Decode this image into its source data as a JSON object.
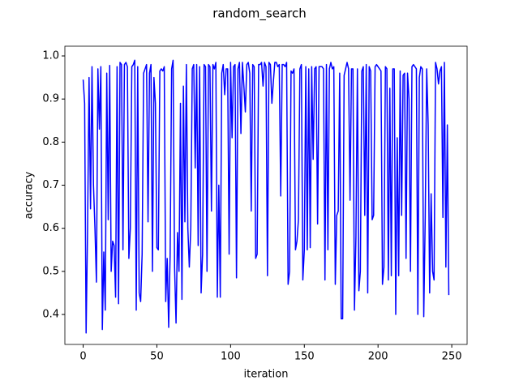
{
  "chart_data": {
    "type": "line",
    "title": "random_search",
    "x_label": "iteration",
    "y_label": "accuracy",
    "x": [
      0,
      1,
      2,
      3,
      4,
      5,
      6,
      7,
      8,
      9,
      10,
      11,
      12,
      13,
      14,
      15,
      16,
      17,
      18,
      19,
      20,
      21,
      22,
      23,
      24,
      25,
      26,
      27,
      28,
      29,
      30,
      31,
      32,
      33,
      34,
      35,
      36,
      37,
      38,
      39,
      40,
      41,
      42,
      43,
      44,
      45,
      46,
      47,
      48,
      49,
      50,
      51,
      52,
      53,
      54,
      55,
      56,
      57,
      58,
      59,
      60,
      61,
      62,
      63,
      64,
      65,
      66,
      67,
      68,
      69,
      70,
      71,
      72,
      73,
      74,
      75,
      76,
      77,
      78,
      79,
      80,
      81,
      82,
      83,
      84,
      85,
      86,
      87,
      88,
      89,
      90,
      91,
      92,
      93,
      94,
      95,
      96,
      97,
      98,
      99,
      100,
      101,
      102,
      103,
      104,
      105,
      106,
      107,
      108,
      109,
      110,
      111,
      112,
      113,
      114,
      115,
      116,
      117,
      118,
      119,
      120,
      121,
      122,
      123,
      124,
      125,
      126,
      127,
      128,
      129,
      130,
      131,
      132,
      133,
      134,
      135,
      136,
      137,
      138,
      139,
      140,
      141,
      142,
      143,
      144,
      145,
      146,
      147,
      148,
      149,
      150,
      151,
      152,
      153,
      154,
      155,
      156,
      157,
      158,
      159,
      160,
      161,
      162,
      163,
      164,
      165,
      166,
      167,
      168,
      169,
      170,
      171,
      172,
      173,
      174,
      175,
      176,
      177,
      178,
      179,
      180,
      181,
      182,
      183,
      184,
      185,
      186,
      187,
      188,
      189,
      190,
      191,
      192,
      193,
      194,
      195,
      196,
      197,
      198,
      199,
      200,
      201,
      202,
      203,
      204,
      205,
      206,
      207,
      208,
      209,
      210,
      211,
      212,
      213,
      214,
      215,
      216,
      217,
      218,
      219,
      220,
      221,
      222,
      223,
      224,
      225,
      226,
      227,
      228,
      229,
      230,
      231,
      232,
      233,
      234,
      235,
      236,
      237,
      238,
      239,
      240,
      241,
      242,
      243,
      244,
      245,
      246,
      247,
      248
    ],
    "series": [
      {
        "name": "accuracy",
        "color": "#0000ff",
        "values": [
          0.945,
          0.89,
          0.357,
          0.6,
          0.95,
          0.645,
          0.975,
          0.7,
          0.6,
          0.475,
          0.97,
          0.83,
          0.975,
          0.365,
          0.545,
          0.41,
          0.96,
          0.62,
          0.978,
          0.5,
          0.57,
          0.56,
          0.44,
          0.975,
          0.425,
          0.985,
          0.98,
          0.55,
          0.98,
          0.985,
          0.975,
          0.53,
          0.6,
          0.975,
          0.98,
          0.99,
          0.41,
          0.975,
          0.45,
          0.43,
          0.54,
          0.96,
          0.97,
          0.98,
          0.615,
          0.96,
          0.98,
          0.5,
          0.95,
          0.89,
          0.555,
          0.55,
          0.965,
          0.97,
          0.965,
          0.975,
          0.43,
          0.53,
          0.37,
          0.54,
          0.97,
          0.99,
          0.51,
          0.38,
          0.59,
          0.5,
          0.89,
          0.435,
          0.93,
          0.615,
          0.98,
          0.6,
          0.51,
          0.6,
          0.97,
          0.98,
          0.74,
          0.98,
          0.56,
          0.975,
          0.45,
          0.54,
          0.98,
          0.975,
          0.5,
          0.98,
          0.975,
          0.64,
          0.98,
          0.97,
          0.985,
          0.44,
          0.7,
          0.44,
          0.96,
          0.98,
          0.91,
          0.97,
          0.97,
          0.54,
          0.985,
          0.81,
          0.975,
          0.98,
          0.485,
          0.97,
          0.985,
          0.82,
          0.985,
          0.93,
          0.87,
          0.98,
          0.985,
          0.96,
          0.64,
          0.98,
          0.975,
          0.53,
          0.54,
          0.98,
          0.98,
          0.985,
          0.93,
          0.985,
          0.975,
          0.49,
          0.985,
          0.98,
          0.89,
          0.94,
          0.985,
          0.985,
          0.975,
          0.98,
          0.675,
          0.98,
          0.98,
          0.975,
          0.985,
          0.47,
          0.5,
          0.965,
          0.96,
          0.97,
          0.55,
          0.57,
          0.62,
          0.97,
          0.98,
          0.48,
          0.55,
          0.975,
          0.55,
          0.97,
          0.555,
          0.975,
          0.76,
          0.97,
          0.975,
          0.61,
          0.975,
          0.975,
          0.975,
          0.97,
          0.48,
          0.98,
          0.55,
          0.97,
          0.985,
          0.97,
          0.975,
          0.47,
          0.63,
          0.64,
          0.96,
          0.39,
          0.39,
          0.955,
          0.97,
          0.985,
          0.97,
          0.665,
          0.97,
          0.97,
          0.41,
          0.58,
          0.97,
          0.455,
          0.5,
          0.965,
          0.975,
          0.63,
          0.98,
          0.45,
          0.975,
          0.965,
          0.62,
          0.63,
          0.975,
          0.98,
          0.975,
          0.97,
          0.965,
          0.47,
          0.51,
          0.975,
          0.97,
          0.48,
          0.925,
          0.49,
          0.97,
          0.97,
          0.4,
          0.81,
          0.49,
          0.965,
          0.63,
          0.955,
          0.96,
          0.53,
          0.96,
          0.9,
          0.5,
          0.975,
          0.98,
          0.975,
          0.97,
          0.4,
          0.95,
          0.975,
          0.97,
          0.395,
          0.625,
          0.97,
          0.84,
          0.45,
          0.68,
          0.5,
          0.48,
          0.985,
          0.97,
          0.935,
          0.965,
          0.975,
          0.625,
          0.985,
          0.51,
          0.84,
          0.445
        ]
      }
    ],
    "xlim": [
      -12.4,
      260.4
    ],
    "ylim": [
      0.3305,
      1.0226
    ],
    "xticks": [
      0,
      50,
      100,
      150,
      200,
      250
    ],
    "yticks": [
      {
        "value": 0.4,
        "label": "0.4"
      },
      {
        "value": 0.5,
        "label": "0.5"
      },
      {
        "value": 0.6,
        "label": "0.6"
      },
      {
        "value": 0.7,
        "label": "0.7"
      },
      {
        "value": 0.8,
        "label": "0.8"
      },
      {
        "value": 0.9,
        "label": "0.9"
      },
      {
        "value": 1.0,
        "label": "1.0"
      }
    ]
  }
}
